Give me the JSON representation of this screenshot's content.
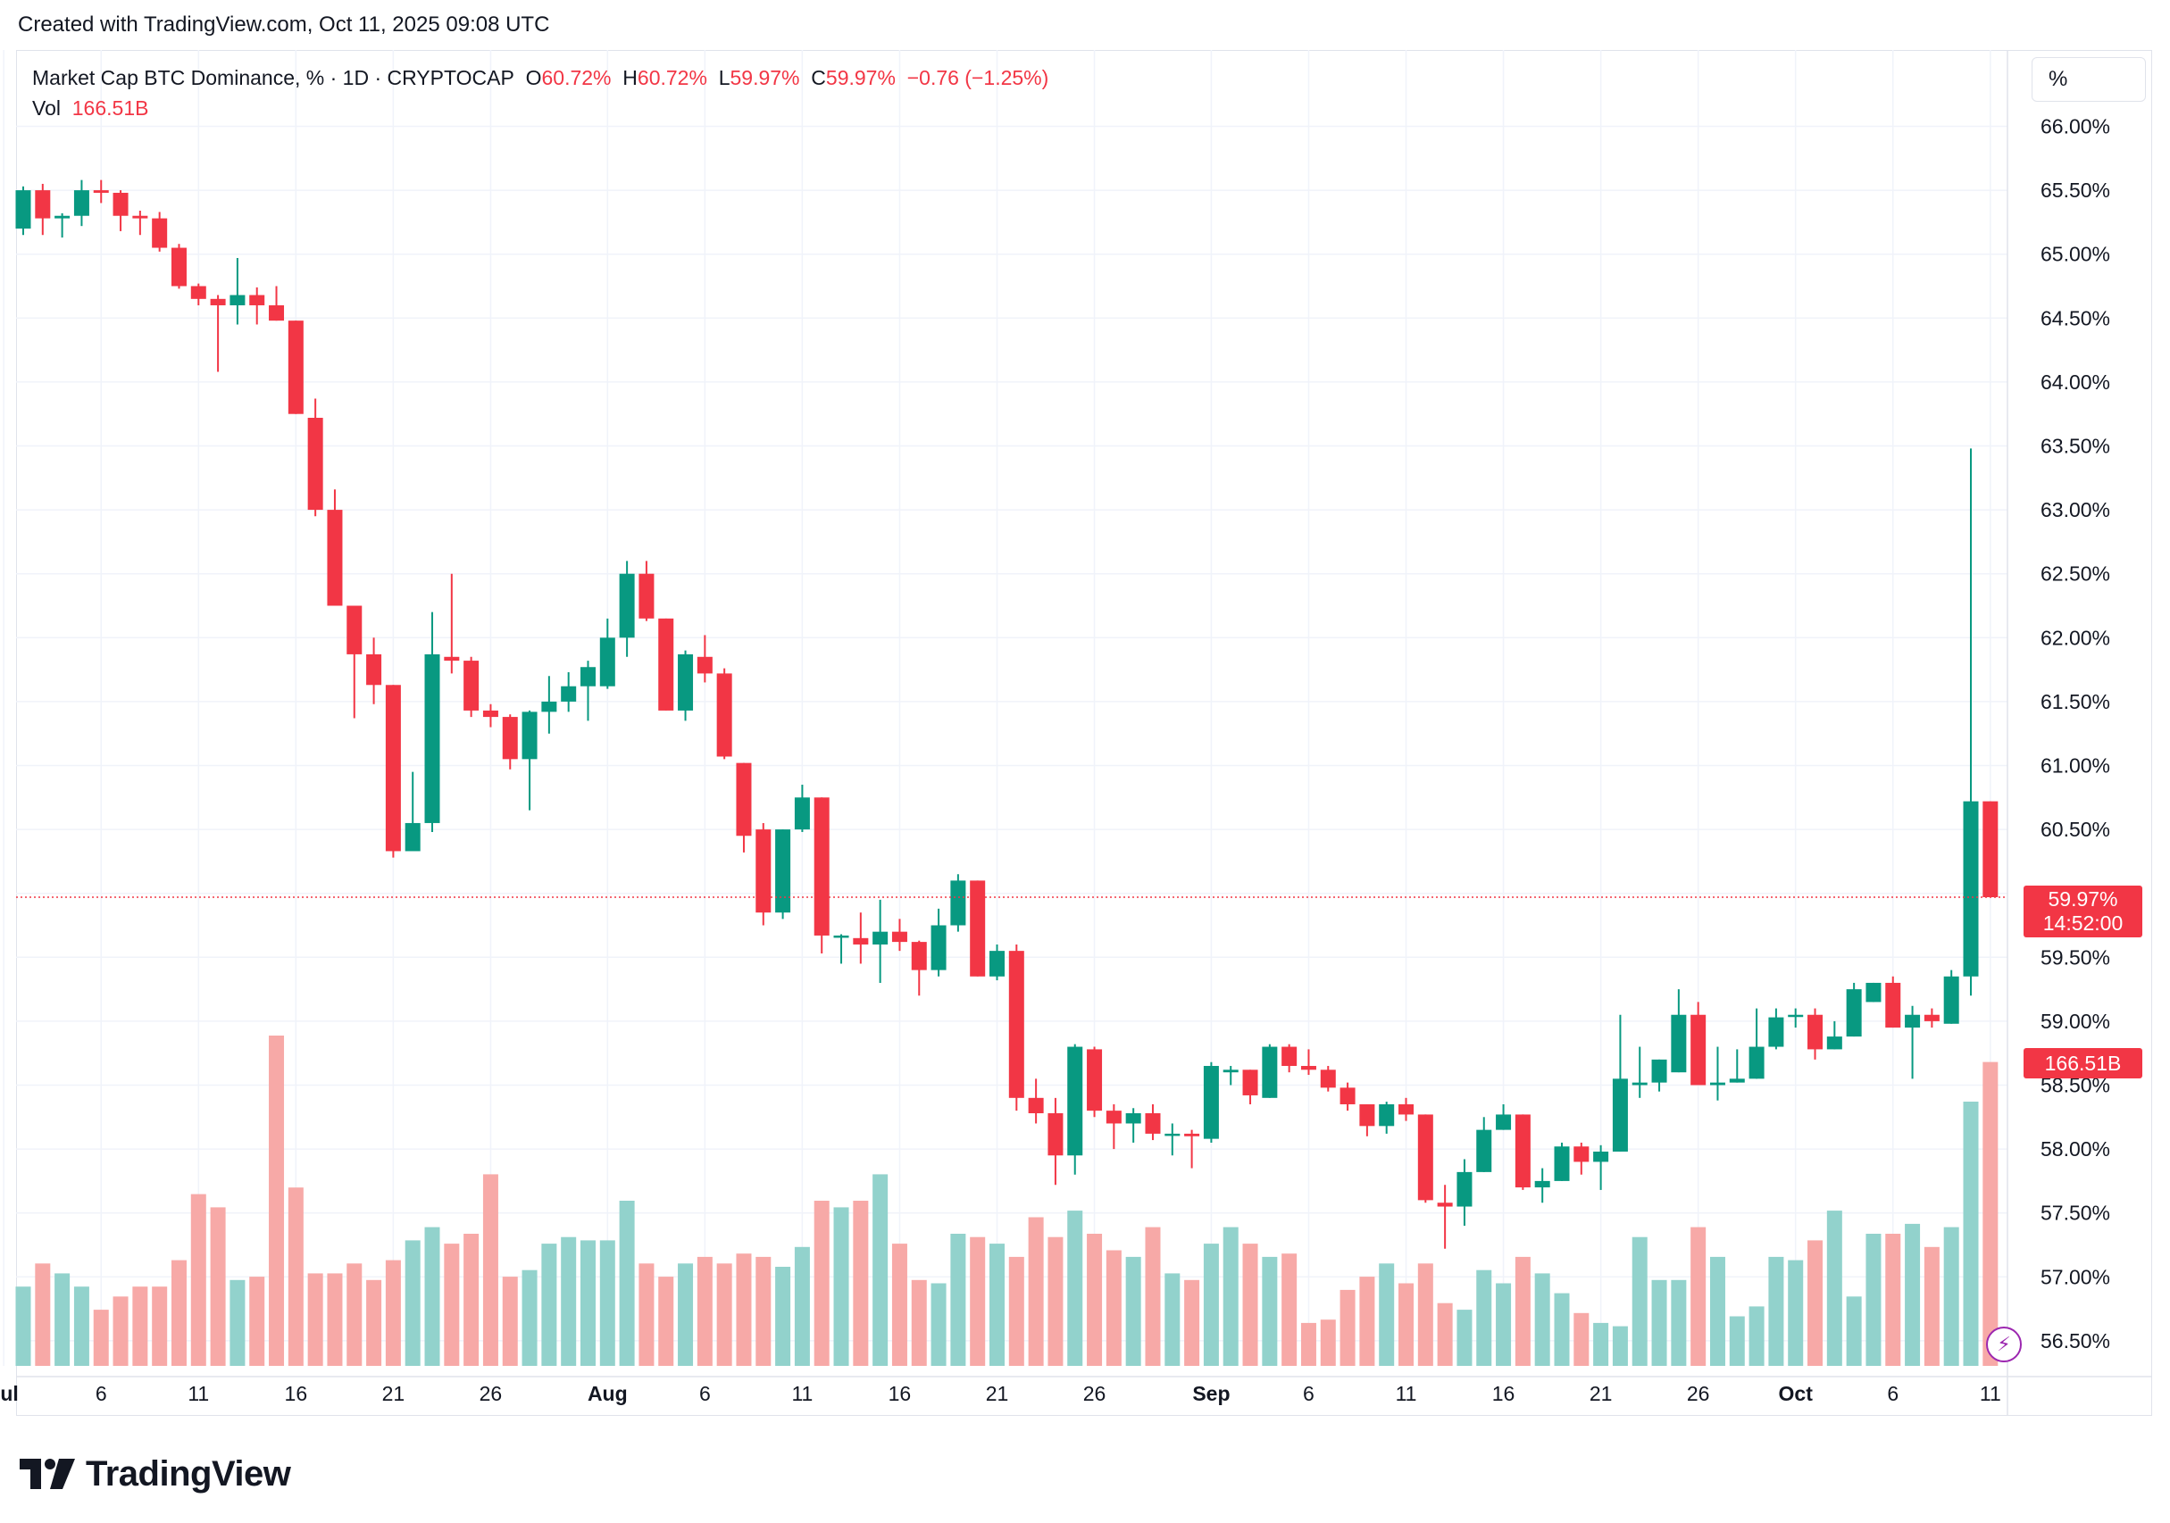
{
  "header": {
    "created_text": "Created with TradingView.com, Oct 11, 2025 09:08 UTC"
  },
  "legend": {
    "symbol": "Market Cap BTC Dominance, % · 1D · CRYPTOCAP",
    "o_label": "O",
    "o_value": "60.72%",
    "h_label": "H",
    "h_value": "60.72%",
    "l_label": "L",
    "l_value": "59.97%",
    "c_label": "C",
    "c_value": "59.97%",
    "change": "−0.76 (−1.25%)",
    "vol_label": "Vol",
    "vol_value": "166.51B"
  },
  "scale": {
    "unit": "%"
  },
  "badges": {
    "price": "59.97%",
    "countdown": "14:52:00",
    "volume": "166.51B"
  },
  "brand": {
    "name": "TradingView"
  },
  "colors": {
    "up": "#089981",
    "down": "#f23645",
    "up_vol": "#92d2cc",
    "down_vol": "#f7a9a7",
    "grid": "#f0f3fa"
  },
  "chart_data": {
    "type": "candlestick",
    "title": "Market Cap BTC Dominance, % · 1D · CRYPTOCAP",
    "ylim": [
      56.3,
      66.3
    ],
    "y_ticks": [
      "66.00%",
      "65.50%",
      "65.00%",
      "64.50%",
      "64.00%",
      "63.50%",
      "63.00%",
      "62.50%",
      "62.00%",
      "61.50%",
      "61.00%",
      "60.50%",
      "60.00%",
      "59.50%",
      "59.00%",
      "58.50%",
      "58.00%",
      "57.50%",
      "57.00%",
      "56.50%"
    ],
    "y_tick_values": [
      66.0,
      65.5,
      65.0,
      64.5,
      64.0,
      63.5,
      63.0,
      62.5,
      62.0,
      61.5,
      61.0,
      60.5,
      60.0,
      59.5,
      59.0,
      58.5,
      58.0,
      57.5,
      57.0,
      56.5
    ],
    "x_ticks": [
      {
        "label": "Jul",
        "day": 1,
        "bold": true
      },
      {
        "label": "6",
        "day": 6
      },
      {
        "label": "11",
        "day": 11
      },
      {
        "label": "16",
        "day": 16
      },
      {
        "label": "21",
        "day": 21
      },
      {
        "label": "26",
        "day": 26
      },
      {
        "label": "Aug",
        "day": 32,
        "bold": true
      },
      {
        "label": "6",
        "day": 37
      },
      {
        "label": "11",
        "day": 42
      },
      {
        "label": "16",
        "day": 47
      },
      {
        "label": "21",
        "day": 52
      },
      {
        "label": "26",
        "day": 57
      },
      {
        "label": "Sep",
        "day": 63,
        "bold": true
      },
      {
        "label": "6",
        "day": 68
      },
      {
        "label": "11",
        "day": 73
      },
      {
        "label": "16",
        "day": 78
      },
      {
        "label": "21",
        "day": 83
      },
      {
        "label": "26",
        "day": 88
      },
      {
        "label": "Oct",
        "day": 93,
        "bold": true
      },
      {
        "label": "6",
        "day": 98
      },
      {
        "label": "11",
        "day": 103
      }
    ],
    "first_day": 2,
    "candles": [
      [
        65.2,
        65.5,
        65.53,
        65.15
      ],
      [
        65.5,
        65.28,
        65.55,
        65.15
      ],
      [
        65.28,
        65.3,
        65.32,
        65.13
      ],
      [
        65.3,
        65.5,
        65.58,
        65.22
      ],
      [
        65.5,
        65.48,
        65.58,
        65.4
      ],
      [
        65.48,
        65.3,
        65.5,
        65.18
      ],
      [
        65.3,
        65.28,
        65.34,
        65.15
      ],
      [
        65.28,
        65.05,
        65.33,
        65.02
      ],
      [
        65.05,
        64.75,
        65.08,
        64.73
      ],
      [
        64.75,
        64.65,
        64.77,
        64.6
      ],
      [
        64.65,
        64.6,
        64.68,
        64.08
      ],
      [
        64.6,
        64.68,
        64.97,
        64.45
      ],
      [
        64.68,
        64.6,
        64.74,
        64.45
      ],
      [
        64.6,
        64.48,
        64.75,
        64.48
      ],
      [
        64.48,
        63.75,
        64.48,
        63.75
      ],
      [
        63.72,
        63.0,
        63.87,
        62.95
      ],
      [
        63.0,
        62.25,
        63.16,
        62.25
      ],
      [
        62.25,
        61.87,
        62.25,
        61.37
      ],
      [
        61.87,
        61.63,
        62.0,
        61.48
      ],
      [
        61.63,
        60.33,
        61.63,
        60.28
      ],
      [
        60.33,
        60.55,
        60.95,
        60.45
      ],
      [
        60.55,
        61.87,
        62.2,
        60.48
      ],
      [
        61.85,
        61.82,
        62.5,
        61.72
      ],
      [
        61.82,
        61.43,
        61.85,
        61.38
      ],
      [
        61.43,
        61.38,
        61.48,
        61.3
      ],
      [
        61.38,
        61.05,
        61.4,
        60.97
      ],
      [
        61.05,
        61.42,
        61.43,
        60.65
      ],
      [
        61.42,
        61.5,
        61.7,
        61.25
      ],
      [
        61.5,
        61.62,
        61.73,
        61.42
      ],
      [
        61.62,
        61.77,
        61.82,
        61.35
      ],
      [
        61.62,
        62.0,
        62.15,
        61.6
      ],
      [
        62.0,
        62.5,
        62.6,
        61.85
      ],
      [
        62.5,
        62.15,
        62.6,
        62.13
      ],
      [
        62.15,
        61.43,
        62.15,
        61.43
      ],
      [
        61.43,
        61.87,
        61.9,
        61.35
      ],
      [
        61.85,
        61.72,
        62.02,
        61.65
      ],
      [
        61.72,
        61.07,
        61.76,
        61.05
      ],
      [
        61.02,
        60.45,
        61.02,
        60.32
      ],
      [
        60.5,
        59.85,
        60.55,
        59.75
      ],
      [
        59.85,
        60.5,
        60.5,
        59.8
      ],
      [
        60.5,
        60.75,
        60.85,
        60.48
      ],
      [
        60.75,
        59.67,
        60.75,
        59.53
      ],
      [
        59.67,
        59.67,
        59.68,
        59.45
      ],
      [
        59.65,
        59.6,
        59.85,
        59.45
      ],
      [
        59.6,
        59.7,
        59.95,
        59.3
      ],
      [
        59.7,
        59.62,
        59.8,
        59.55
      ],
      [
        59.62,
        59.4,
        59.63,
        59.2
      ],
      [
        59.4,
        59.75,
        59.88,
        59.35
      ],
      [
        59.75,
        60.1,
        60.15,
        59.7
      ],
      [
        60.1,
        59.35,
        60.1,
        59.35
      ],
      [
        59.35,
        59.55,
        59.6,
        59.32
      ],
      [
        59.55,
        58.4,
        59.6,
        58.3
      ],
      [
        58.4,
        58.28,
        58.55,
        58.2
      ],
      [
        58.28,
        57.95,
        58.4,
        57.72
      ],
      [
        57.95,
        58.8,
        58.82,
        57.8
      ],
      [
        58.78,
        58.3,
        58.8,
        58.25
      ],
      [
        58.3,
        58.2,
        58.35,
        58.0
      ],
      [
        58.2,
        58.28,
        58.32,
        58.05
      ],
      [
        58.28,
        58.12,
        58.35,
        58.07
      ],
      [
        58.12,
        58.12,
        58.2,
        57.95
      ],
      [
        58.12,
        58.1,
        58.15,
        57.85
      ],
      [
        58.08,
        58.65,
        58.68,
        58.05
      ],
      [
        58.6,
        58.62,
        58.65,
        58.5
      ],
      [
        58.62,
        58.42,
        58.62,
        58.35
      ],
      [
        58.4,
        58.8,
        58.82,
        58.4
      ],
      [
        58.8,
        58.65,
        58.82,
        58.6
      ],
      [
        58.65,
        58.62,
        58.78,
        58.58
      ],
      [
        58.62,
        58.48,
        58.65,
        58.45
      ],
      [
        58.48,
        58.35,
        58.52,
        58.3
      ],
      [
        58.35,
        58.18,
        58.35,
        58.1
      ],
      [
        58.18,
        58.35,
        58.37,
        58.12
      ],
      [
        58.35,
        58.27,
        58.4,
        58.22
      ],
      [
        58.27,
        57.6,
        58.27,
        57.58
      ],
      [
        57.58,
        57.55,
        57.72,
        57.22
      ],
      [
        57.55,
        57.82,
        57.92,
        57.4
      ],
      [
        57.82,
        58.15,
        58.25,
        57.82
      ],
      [
        58.15,
        58.27,
        58.35,
        58.15
      ],
      [
        58.27,
        57.7,
        58.27,
        57.68
      ],
      [
        57.7,
        57.75,
        57.85,
        57.58
      ],
      [
        57.75,
        58.02,
        58.05,
        57.75
      ],
      [
        58.02,
        57.9,
        58.05,
        57.8
      ],
      [
        57.9,
        57.98,
        58.03,
        57.68
      ],
      [
        57.98,
        58.55,
        59.05,
        57.98
      ],
      [
        58.5,
        58.52,
        58.8,
        58.4
      ],
      [
        58.52,
        58.7,
        58.7,
        58.45
      ],
      [
        58.6,
        59.05,
        59.25,
        58.6
      ],
      [
        59.05,
        58.5,
        59.15,
        58.5
      ],
      [
        58.5,
        58.52,
        58.8,
        58.38
      ],
      [
        58.52,
        58.55,
        58.78,
        58.52
      ],
      [
        58.55,
        58.8,
        59.1,
        58.55
      ],
      [
        58.8,
        59.03,
        59.1,
        58.78
      ],
      [
        59.05,
        59.05,
        59.1,
        58.95
      ],
      [
        59.05,
        58.78,
        59.1,
        58.7
      ],
      [
        58.78,
        58.88,
        59.0,
        58.78
      ],
      [
        58.88,
        59.25,
        59.3,
        58.88
      ],
      [
        59.15,
        59.3,
        59.3,
        59.15
      ],
      [
        59.3,
        58.95,
        59.35,
        58.95
      ],
      [
        58.95,
        59.05,
        59.12,
        58.55
      ],
      [
        59.05,
        59.0,
        59.1,
        58.95
      ],
      [
        58.98,
        59.35,
        59.4,
        58.98
      ],
      [
        59.35,
        60.72,
        63.48,
        59.2
      ],
      [
        60.72,
        59.97,
        60.72,
        59.97
      ]
    ],
    "volume_rel": [
      0.24,
      0.31,
      0.28,
      0.24,
      0.17,
      0.21,
      0.24,
      0.24,
      0.32,
      0.52,
      0.48,
      0.26,
      0.27,
      1.0,
      0.54,
      0.28,
      0.28,
      0.31,
      0.26,
      0.32,
      0.38,
      0.42,
      0.37,
      0.4,
      0.58,
      0.27,
      0.29,
      0.37,
      0.39,
      0.38,
      0.38,
      0.5,
      0.31,
      0.27,
      0.31,
      0.33,
      0.31,
      0.34,
      0.33,
      0.3,
      0.36,
      0.5,
      0.48,
      0.5,
      0.58,
      0.37,
      0.26,
      0.25,
      0.4,
      0.39,
      0.37,
      0.33,
      0.45,
      0.39,
      0.47,
      0.4,
      0.35,
      0.33,
      0.42,
      0.28,
      0.26,
      0.37,
      0.42,
      0.37,
      0.33,
      0.34,
      0.13,
      0.14,
      0.23,
      0.27,
      0.31,
      0.25,
      0.31,
      0.19,
      0.17,
      0.29,
      0.25,
      0.33,
      0.28,
      0.22,
      0.16,
      0.13,
      0.12,
      0.39,
      0.26,
      0.26,
      0.42,
      0.33,
      0.15,
      0.18,
      0.33,
      0.32,
      0.38,
      0.47,
      0.21,
      0.4,
      0.4,
      0.43,
      0.36,
      0.42,
      0.8,
      0.92
    ]
  }
}
